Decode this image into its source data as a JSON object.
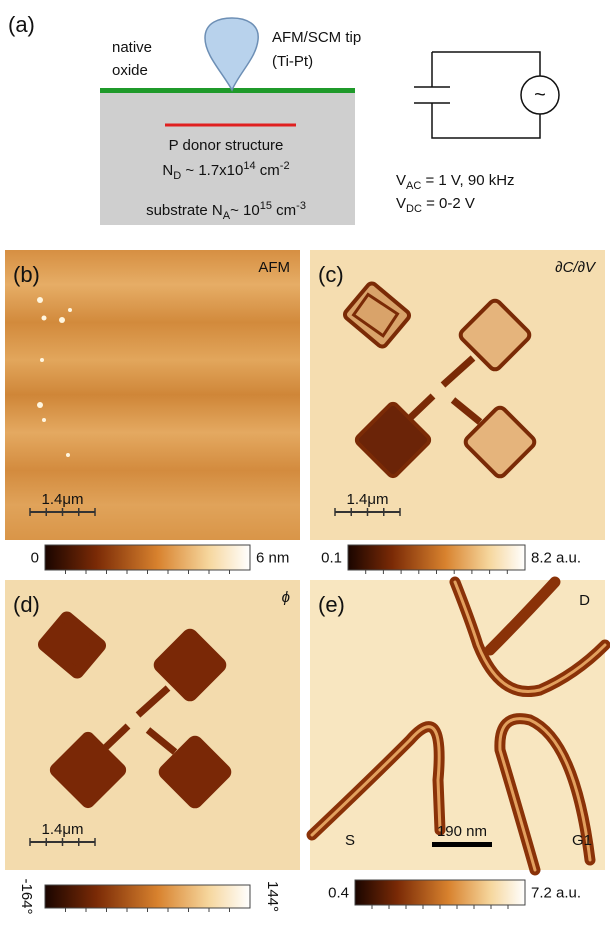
{
  "panel_a": {
    "label": "(a)",
    "native_oxide": [
      "native",
      "oxide"
    ],
    "tip": [
      "AFM/SCM tip",
      "(Ti-Pt)"
    ],
    "donor": "P donor structure",
    "nd": [
      "N",
      "D",
      " ~ 1.7x10",
      "14",
      " cm",
      "-2"
    ],
    "substrate": [
      "substrate N",
      "A",
      "~ 10",
      "15",
      " cm",
      "-3"
    ],
    "source_symbol": "~",
    "vac": [
      "V",
      "AC",
      " = 1 V, 90 kHz"
    ],
    "vdc": [
      "V",
      "DC",
      " = 0-2 V"
    ]
  },
  "panels": [
    {
      "label": "(b)",
      "channel": "AFM",
      "scale_bar": "1.4μm",
      "colorbar": {
        "min": "0",
        "max": "6 nm"
      }
    },
    {
      "label": "(c)",
      "channel": "∂C/∂V",
      "scale_bar": "1.4μm",
      "colorbar": {
        "min": "0.1",
        "max": "8.2 a.u."
      }
    },
    {
      "label": "(d)",
      "channel": "ϕ",
      "scale_bar": "1.4μm",
      "colorbar": {
        "min": "-164°",
        "max": "144°"
      }
    },
    {
      "label": "(e)",
      "terminals": [
        "D",
        "S",
        "G1"
      ],
      "scale_bar": "190 nm",
      "colorbar": {
        "min": "0.4",
        "max": "7.2 a.u."
      }
    }
  ]
}
